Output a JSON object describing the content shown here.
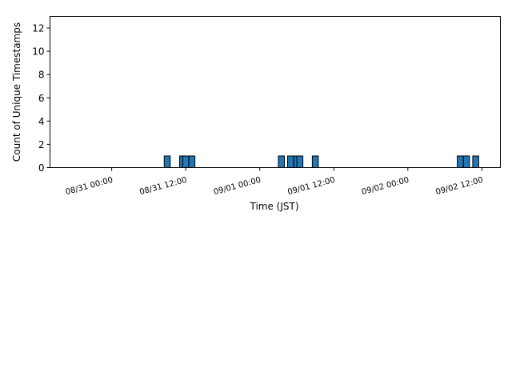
{
  "chart_data": {
    "type": "bar",
    "title": "",
    "xlabel": "Time (JST)",
    "ylabel": "Count of Unique Timestamps",
    "x_ticks": [
      "08/31 00:00",
      "08/31 12:00",
      "09/01 00:00",
      "09/01 12:00",
      "09/02 00:00",
      "09/02 12:00"
    ],
    "y_ticks": [
      0,
      2,
      4,
      6,
      8,
      10,
      12
    ],
    "x_range": [
      "08/30 14:00",
      "09/02 15:00"
    ],
    "ylim": [
      0,
      13
    ],
    "grid": false,
    "bar_color": "#1f77b4",
    "bar_edge_color": "#000000",
    "bars": [
      {
        "x": "08/31 09:00",
        "value": 1
      },
      {
        "x": "08/31 11:30",
        "value": 1
      },
      {
        "x": "08/31 12:00",
        "value": 1
      },
      {
        "x": "08/31 13:00",
        "value": 1
      },
      {
        "x": "09/01 03:30",
        "value": 1
      },
      {
        "x": "09/01 05:00",
        "value": 1
      },
      {
        "x": "09/01 06:00",
        "value": 1
      },
      {
        "x": "09/01 06:30",
        "value": 1
      },
      {
        "x": "09/01 09:00",
        "value": 1
      },
      {
        "x": "09/02 08:30",
        "value": 1
      },
      {
        "x": "09/02 09:30",
        "value": 1
      },
      {
        "x": "09/02 11:00",
        "value": 1
      }
    ]
  }
}
